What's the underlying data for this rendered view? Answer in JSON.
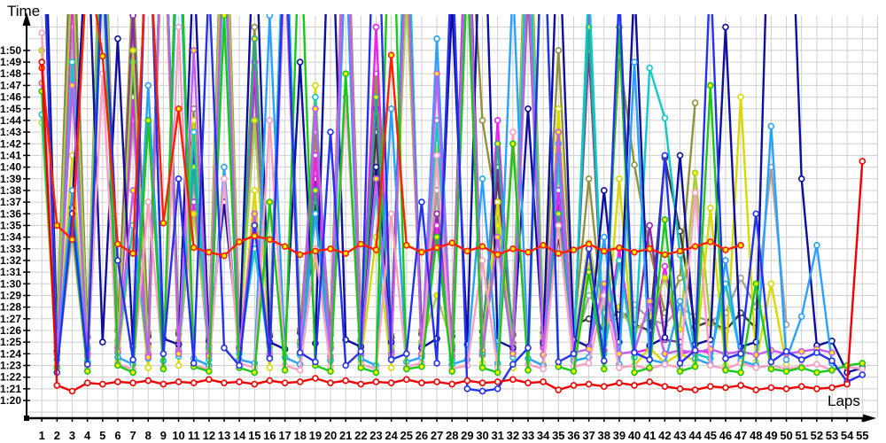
{
  "chart_data": {
    "type": "line",
    "title": "",
    "xlabel": "Laps",
    "ylabel": "Time",
    "x_ticks": [
      1,
      2,
      3,
      4,
      5,
      6,
      7,
      8,
      9,
      10,
      11,
      12,
      13,
      14,
      15,
      16,
      17,
      18,
      19,
      20,
      21,
      22,
      23,
      24,
      25,
      26,
      27,
      28,
      29,
      30,
      31,
      32,
      33,
      34,
      35,
      36,
      37,
      38,
      39,
      40,
      41,
      42,
      43,
      44,
      45,
      46,
      47,
      48,
      49,
      50,
      51,
      52,
      53,
      54,
      55
    ],
    "y_ticks": [
      "1:20",
      "1:21",
      "1:22",
      "1:23",
      "1:24",
      "1:25",
      "1:26",
      "1:27",
      "1:28",
      "1:29",
      "1:30",
      "1:31",
      "1:32",
      "1:33",
      "1:34",
      "1:35",
      "1:36",
      "1:37",
      "1:38",
      "1:39",
      "1:40",
      "1:41",
      "1:42",
      "1:43",
      "1:44",
      "1:45",
      "1:46",
      "1:47",
      "1:48",
      "1:49",
      "1:50"
    ],
    "y_unit": "m:ss lap time, axis 1:20 at bottom to 1:50 at top, values in seconds below",
    "ylim_seconds": [
      80,
      110
    ],
    "xlim_laps": [
      1,
      55
    ],
    "grid": true,
    "legend_position": "none",
    "grid_color": "#cfcfcf",
    "axis_color": "#000000",
    "marker_fills": {
      "white": "#ffffff",
      "yellow": "#ffee00"
    },
    "series": [
      {
        "name": "s1-olive",
        "color": "#92923e",
        "marker": "white",
        "values": [
          131,
          86,
          124,
          85.5,
          128,
          86.2,
          116,
          85.8,
          126,
          86,
          105,
          85.6,
          129,
          86.3,
          112,
          85.7,
          124,
          86.1,
          103,
          85.8,
          127,
          86.4,
          108,
          85.6,
          122,
          86,
          98,
          85.9,
          125,
          104,
          96,
          85.7,
          128,
          86.2,
          110,
          85.8,
          99,
          86.5,
          109.5,
          100.2,
          93,
          87.5,
          90.5,
          105.5,
          null,
          null,
          null,
          null,
          null,
          null,
          null,
          null,
          null,
          null,
          null
        ]
      },
      {
        "name": "s2-gray",
        "color": "#a0a0a0",
        "marker": "white",
        "values": [
          126,
          84.6,
          112,
          84.3,
          121,
          84.8,
          104,
          84.2,
          125,
          84.5,
          99,
          84.3,
          122,
          84.7,
          107,
          84.2,
          119,
          84.6,
          96,
          84.4,
          124,
          84.8,
          102,
          84.3,
          117,
          84.5,
          98,
          84.2,
          120,
          84.7,
          93,
          84.4,
          115,
          84.6,
          100,
          84.3,
          89,
          87.5,
          86.8,
          88.2,
          87,
          86.5,
          88,
          87.2,
          86.8,
          87.5,
          90.5,
          88,
          100,
          86.5,
          null,
          null,
          null,
          null,
          null
        ]
      },
      {
        "name": "s3-black",
        "color": "#3a3a3a",
        "marker": "white",
        "values": [
          128,
          85.8,
          117,
          85.4,
          124,
          86,
          108,
          85.5,
          126,
          85.7,
          101,
          85.4,
          123,
          85.9,
          104,
          85.5,
          120,
          85.8,
          97,
          85.6,
          125,
          86,
          103,
          85.4,
          118,
          85.7,
          95,
          85.5,
          122,
          85.9,
          99,
          85.6,
          116,
          85.8,
          94,
          86.5,
          87,
          86.2,
          87.8,
          86.5,
          86,
          100.8,
          94.5,
          86.3,
          86.8,
          86,
          87.5,
          86.2,
          null,
          null,
          null,
          null,
          null,
          null,
          null
        ]
      },
      {
        "name": "s4-purple",
        "color": "#8c27a8",
        "marker": "white",
        "values": [
          129,
          85,
          120,
          84.7,
          126,
          85.2,
          113,
          84.8,
          124,
          85,
          102,
          84.7,
          127,
          85.3,
          108,
          84.8,
          123,
          85.1,
          99,
          84.9,
          125,
          85.2,
          105,
          84.7,
          121,
          85,
          96,
          84.8,
          126,
          85.3,
          100,
          84.9,
          124,
          85.1,
          97,
          84.8,
          110,
          85,
          92,
          84.9,
          95,
          85.2,
          85,
          null,
          null,
          null,
          null,
          null,
          null,
          null,
          null,
          null,
          null,
          null,
          null
        ]
      },
      {
        "name": "s5-magenta",
        "color": "#ee22ee",
        "marker": "white",
        "values": [
          128,
          84.3,
          115,
          84,
          126,
          84.5,
          106,
          83.9,
          124,
          84.2,
          97,
          84,
          128,
          84.4,
          109,
          83.8,
          122,
          84.1,
          101,
          84.5,
          127,
          83.9,
          112,
          84.2,
          119,
          84,
          95,
          84.4,
          125,
          83.9,
          104,
          84.1,
          121,
          84.5,
          98,
          84,
          114,
          84.3,
          93,
          84.1,
          84.4,
          91.5,
          84,
          84.3,
          84.1,
          null,
          null,
          null,
          null,
          null,
          null,
          null,
          null,
          null,
          null
        ]
      },
      {
        "name": "s6-teal",
        "color": "#29a88e",
        "marker": "yellow",
        "values": [
          127,
          84.9,
          119,
          84.5,
          123,
          85.1,
          109,
          84.6,
          125,
          84.8,
          100,
          84.5,
          126,
          85,
          111,
          84.6,
          121,
          84.9,
          98,
          84.7,
          124,
          85.1,
          106,
          84.5,
          119,
          84.8,
          94,
          84.6,
          123,
          85,
          102,
          84.7,
          120,
          84.9,
          96,
          84.6,
          112,
          84.8,
          null,
          null,
          null,
          null,
          null,
          null,
          null,
          null,
          null,
          null,
          null,
          null,
          null,
          null,
          null,
          null,
          null
        ]
      },
      {
        "name": "s7-yellowgreen",
        "color": "#a8cc3c",
        "marker": "yellow",
        "values": [
          110,
          85.5,
          118,
          84.8,
          126,
          85.2,
          110,
          84.6,
          123,
          85,
          96,
          84.9,
          127,
          85.3,
          104,
          84.7,
          120,
          85.1,
          92,
          84.8,
          125,
          85.4,
          100,
          84.6,
          115,
          85,
          89,
          84.9,
          121,
          85.2,
          95,
          84.7,
          126,
          85.5,
          102,
          84.8,
          93.5,
          86.5,
          88,
          85.9,
          87.2,
          90.5,
          86.1,
          99.5,
          86.6,
          85.9,
          null,
          null,
          null,
          null,
          null,
          null,
          null,
          null,
          null
        ]
      },
      {
        "name": "s8-yellow",
        "color": "#d9d900",
        "marker": "white",
        "values": [
          103.8,
          83.1,
          101,
          82.9,
          118,
          83.3,
          95,
          82.8,
          124,
          83,
          104,
          82.9,
          120,
          83.4,
          98,
          82.8,
          123,
          83.1,
          107,
          82.9,
          119,
          83.3,
          94,
          82.8,
          125,
          83,
          102,
          82.9,
          121,
          83.2,
          97,
          82.8,
          118,
          83.1,
          105,
          82.9,
          92,
          83.3,
          99,
          83,
          84.5,
          83.2,
          84,
          83.4,
          96.5,
          83,
          106,
          83.3,
          90,
          83.1,
          null,
          null,
          null,
          null,
          null
        ]
      },
      {
        "name": "s9-cyan",
        "color": "#10c8c8",
        "marker": "white",
        "values": [
          104.5,
          83.9,
          109,
          83.4,
          122,
          84.1,
          95,
          83.6,
          127,
          83.8,
          103,
          83.5,
          119,
          84,
          93,
          83.7,
          125,
          83.9,
          106,
          83.5,
          121,
          84.2,
          98,
          83.6,
          126,
          83.8,
          104,
          83.5,
          118,
          84.1,
          94,
          83.7,
          123,
          83.9,
          101,
          83.6,
          116,
          84,
          92,
          83.7,
          108.5,
          104.2,
          92.5,
          84,
          83.6,
          90,
          83.8,
          null,
          null,
          null,
          null,
          null,
          null,
          null,
          null
        ]
      },
      {
        "name": "s10-navy",
        "color": "#0f0f9e",
        "marker": "white",
        "values": [
          132,
          84.2,
          96.5,
          121,
          85,
          111,
          84.6,
          125,
          85.3,
          84.8,
          118,
          85.1,
          97,
          84.5,
          123,
          85,
          84.4,
          109,
          84.9,
          126,
          85.2,
          84.6,
          100,
          85,
          120,
          84.5,
          85.3,
          114,
          84.8,
          128,
          85.1,
          84.5,
          105,
          84.9,
          122,
          85.2,
          84.6,
          98,
          85,
          116,
          84.7,
          85.4,
          101,
          84.8,
          85.2,
          112,
          84.6,
          85,
          130,
          135,
          99,
          84.7,
          85.1,
          82.4,
          82.8
        ]
      },
      {
        "name": "s11-skyblue",
        "color": "#2aa1ff",
        "marker": "white",
        "values": [
          124,
          83.5,
          98,
          83.2,
          117,
          83.7,
          83.1,
          107,
          83.4,
          122,
          83.6,
          83,
          100,
          83.5,
          83.2,
          113,
          83.7,
          83.1,
          96,
          83.4,
          119,
          83.6,
          83,
          105,
          83.3,
          83.7,
          111,
          83.1,
          83.5,
          99,
          83.2,
          116,
          83.6,
          83,
          102,
          83.4,
          83.7,
          94,
          83.1,
          109,
          83.5,
          83.2,
          88.5,
          83.6,
          83.1,
          92,
          83.4,
          83,
          103.5,
          83.5,
          87.2,
          93.3,
          83.2,
          null,
          null
        ]
      },
      {
        "name": "s12-violet",
        "color": "#c45cf2",
        "marker": "yellow",
        "values": [
          107.2,
          84,
          107,
          83.8,
          119,
          84.2,
          98,
          83.7,
          125,
          84,
          110,
          83.8,
          121,
          84.3,
          96,
          83.9,
          118,
          84.1,
          105,
          83.8,
          124,
          84.2,
          99,
          83.9,
          120,
          84,
          108,
          83.8,
          122,
          84.3,
          94,
          84,
          117,
          83.9,
          103,
          84.1,
          84.4,
          90,
          84,
          84.2,
          88.5,
          84,
          84.3,
          84.1,
          84.4,
          84,
          84.2,
          83.9,
          84.3,
          84,
          84.2,
          84.4,
          84.1,
          null,
          null
        ]
      },
      {
        "name": "s13-pink",
        "color": "#ff9ec0",
        "marker": "white",
        "values": [
          111.5,
          83,
          94,
          82.8,
          108,
          83.1,
          82.7,
          97,
          82.9,
          112,
          83,
          82.7,
          99,
          83.2,
          82.8,
          104,
          83,
          82.6,
          93,
          82.9,
          106,
          83.1,
          82.7,
          96,
          82.9,
          83.2,
          101,
          82.7,
          83,
          92,
          82.8,
          103,
          83.1,
          82.7,
          95,
          82.9,
          83.2,
          89,
          82.8,
          83,
          82.7,
          83.1,
          82.8,
          97.8,
          83,
          82.7,
          83.2,
          82.8,
          83,
          82.7,
          82.9,
          83.1,
          82.6,
          82.9,
          82.7
        ]
      },
      {
        "name": "s14-green",
        "color": "#19c819",
        "marker": "yellow",
        "values": [
          106.5,
          82.8,
          95,
          82.5,
          120,
          83,
          82.4,
          104,
          82.7,
          126,
          82.9,
          82.5,
          113,
          82.8,
          82.4,
          97,
          82.6,
          122,
          83,
          82.5,
          108,
          82.8,
          82.4,
          128,
          82.7,
          82.9,
          94,
          82.5,
          117,
          82.8,
          82.4,
          102,
          82.6,
          124,
          82.9,
          82.5,
          91,
          82.7,
          112,
          82.4,
          82.8,
          95.5,
          82.5,
          82.9,
          107,
          82.6,
          82.4,
          90,
          82.7,
          82.5,
          82.8,
          82.4,
          82.6,
          83,
          83.2
        ]
      },
      {
        "name": "s15-blue",
        "color": "#2431f0",
        "marker": "white",
        "values": [
          125,
          82.4,
          96,
          83.1,
          118,
          92,
          83.5,
          127,
          84,
          99,
          83.2,
          116,
          84.5,
          83,
          95,
          83.6,
          121,
          84.1,
          83.3,
          103,
          83,
          84.2,
          129,
          83.5,
          84,
          97,
          83.2,
          119,
          81,
          80.8,
          81,
          83.1,
          84.5,
          124,
          83.3,
          84,
          93,
          83.4,
          115,
          84.1,
          83.5,
          101,
          83.2,
          84.3,
          117,
          83.6,
          84,
          96,
          83.3,
          84.2,
          83.5,
          84.1,
          83.4,
          81.6,
          82.2
        ]
      },
      {
        "name": "s16-red-mid",
        "color": "#ff2000",
        "marker": "yellow",
        "values": [
          108.5,
          95,
          93.8,
          118,
          109.5,
          93.4,
          92.6,
          122,
          95.2,
          105,
          93.1,
          92.7,
          92.4,
          93.6,
          94.1,
          93.8,
          93.2,
          92.5,
          92.8,
          93,
          92.6,
          93.4,
          92.9,
          109.6,
          93.3,
          92.7,
          93.1,
          93.5,
          92.8,
          93.2,
          92.5,
          93,
          92.7,
          93.3,
          92.6,
          92.9,
          93.4,
          92.8,
          93.1,
          92.7,
          93,
          92.5,
          92.8,
          93.2,
          93.6,
          92.9,
          93.3,
          null,
          null,
          null,
          null,
          null,
          null,
          null,
          null
        ]
      },
      {
        "name": "s17-red-low",
        "color": "#f00000",
        "marker": "white",
        "values": [
          109,
          81.3,
          80.8,
          81.5,
          81.4,
          81.6,
          81.5,
          81.7,
          81.4,
          81.6,
          81.5,
          81.8,
          81.5,
          81.6,
          81.4,
          81.7,
          81.5,
          81.6,
          81.9,
          81.5,
          81.7,
          81.4,
          81.6,
          81.5,
          81.8,
          81.5,
          81.6,
          81.4,
          81.7,
          81.5,
          81.6,
          81.8,
          81.5,
          81.6,
          80.9,
          81.3,
          81.4,
          81.2,
          81.5,
          81.3,
          81.6,
          81.2,
          81,
          80.9,
          81.2,
          81.1,
          81.3,
          80.9,
          81.1,
          81,
          81.2,
          81,
          81.1,
          81.4,
          100.5
        ]
      }
    ]
  }
}
